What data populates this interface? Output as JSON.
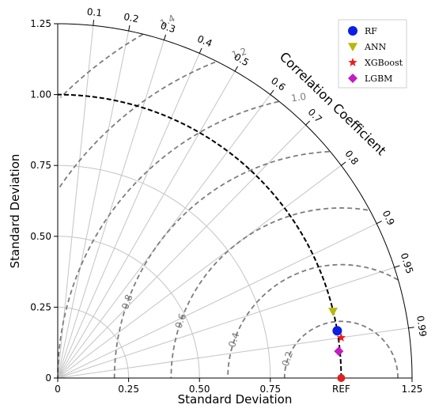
{
  "chart_data": {
    "type": "taylor-diagram",
    "xlabel": "Standard Deviation",
    "ylabel": "Standard Deviation",
    "correlation_label": "Correlation Coefficient",
    "std_range": [
      0,
      1.25
    ],
    "std_ticks": [
      "0",
      "0.25",
      "0.50",
      "0.75",
      "1.00",
      "1.25"
    ],
    "x_ticks": [
      "0",
      "0.25",
      "0.50",
      "0.75",
      "REF",
      "1.25"
    ],
    "correlation_ticks": [
      "0.1",
      "0.2",
      "0.3",
      "0.4",
      "0.5",
      "0.6",
      "0.7",
      "0.8",
      "0.9",
      "0.95",
      "0.99"
    ],
    "correlation_values": [
      0.1,
      0.2,
      0.3,
      0.4,
      0.5,
      0.6,
      0.7,
      0.8,
      0.9,
      0.95,
      0.99
    ],
    "std_grid_arcs": [
      0.25,
      0.5,
      0.75,
      1.25
    ],
    "reference": {
      "label": "REF",
      "std": 1.0,
      "correlation": 1.0,
      "color": "#dd2222"
    },
    "rms_contours": [
      0.2,
      0.4,
      0.6,
      0.8,
      1.0,
      1.2,
      1.4
    ],
    "rms_labels": [
      "0.2",
      "0.4",
      "0.6",
      "0.8",
      "1.0",
      "1.2",
      "1.4"
    ],
    "series": [
      {
        "name": "RF",
        "std": 1.0,
        "correlation": 0.986,
        "color": "#0a1ee8",
        "marker": "circle"
      },
      {
        "name": "ANN",
        "std": 0.999,
        "correlation": 0.972,
        "color": "#b8b80a",
        "marker": "triangle-down"
      },
      {
        "name": "XGBoost",
        "std": 1.01,
        "correlation": 0.99,
        "color": "#ee1c1c",
        "marker": "star"
      },
      {
        "name": "LGBM",
        "std": 0.996,
        "correlation": 0.9955,
        "color": "#c31cc3",
        "marker": "diamond"
      }
    ],
    "grid": true,
    "legend_position": "top-right"
  }
}
